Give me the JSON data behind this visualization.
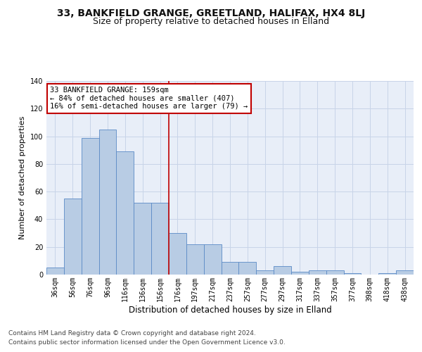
{
  "title": "33, BANKFIELD GRANGE, GREETLAND, HALIFAX, HX4 8LJ",
  "subtitle": "Size of property relative to detached houses in Elland",
  "xlabel": "Distribution of detached houses by size in Elland",
  "ylabel": "Number of detached properties",
  "categories": [
    "36sqm",
    "56sqm",
    "76sqm",
    "96sqm",
    "116sqm",
    "136sqm",
    "156sqm",
    "176sqm",
    "197sqm",
    "217sqm",
    "237sqm",
    "257sqm",
    "277sqm",
    "297sqm",
    "317sqm",
    "337sqm",
    "357sqm",
    "377sqm",
    "398sqm",
    "418sqm",
    "438sqm"
  ],
  "values": [
    5,
    55,
    99,
    105,
    89,
    52,
    52,
    30,
    22,
    22,
    9,
    9,
    3,
    6,
    2,
    3,
    3,
    1,
    0,
    1,
    3
  ],
  "bar_color": "#b8cce4",
  "bar_edge_color": "#5a8ac6",
  "vline_x_index": 6.5,
  "vline_color": "#c00000",
  "annotation_text": "33 BANKFIELD GRANGE: 159sqm\n← 84% of detached houses are smaller (407)\n16% of semi-detached houses are larger (79) →",
  "annotation_box_color": "#c00000",
  "annotation_text_color": "#000000",
  "ylim": [
    0,
    140
  ],
  "yticks": [
    0,
    20,
    40,
    60,
    80,
    100,
    120,
    140
  ],
  "grid_color": "#c8d4e8",
  "background_color": "#e8eef8",
  "footer_line1": "Contains HM Land Registry data © Crown copyright and database right 2024.",
  "footer_line2": "Contains public sector information licensed under the Open Government Licence v3.0.",
  "title_fontsize": 10,
  "subtitle_fontsize": 9,
  "xlabel_fontsize": 8.5,
  "ylabel_fontsize": 8,
  "tick_fontsize": 7,
  "annotation_fontsize": 7.5,
  "footer_fontsize": 6.5
}
